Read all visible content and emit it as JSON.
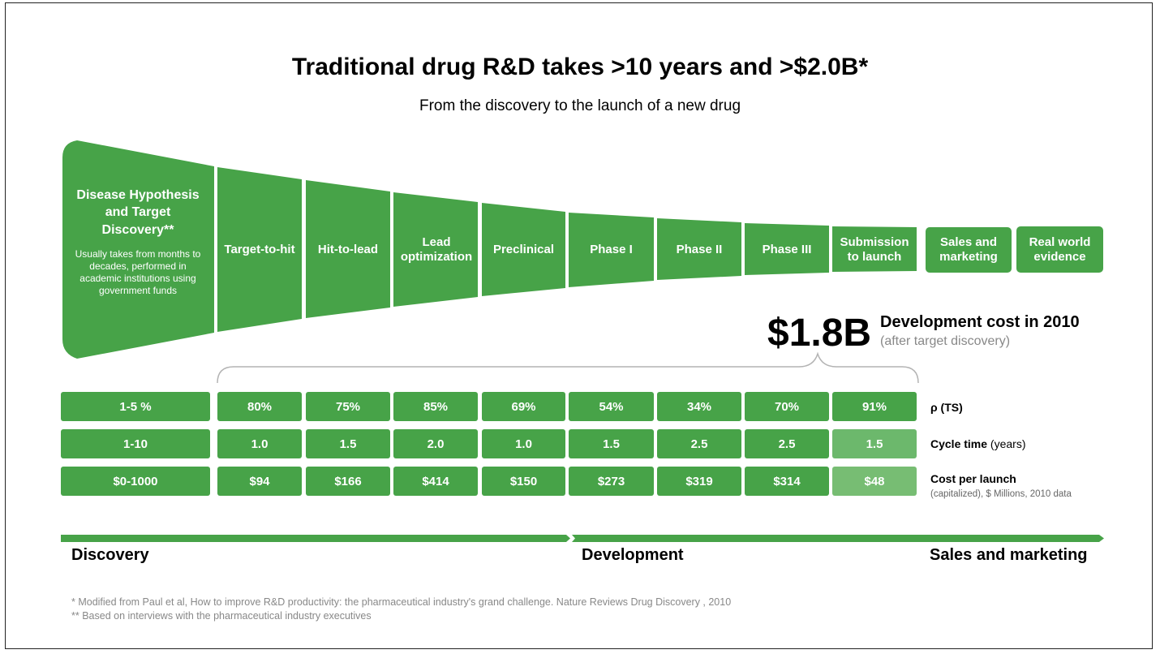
{
  "title": "Traditional drug R&D takes >10 years and >$2.0B*",
  "subtitle": "From the discovery to the launch of a new drug",
  "colors": {
    "green": "#47a348",
    "light_green": "#6cb86c",
    "gray_text": "#888888"
  },
  "funnel": {
    "discovery_title": "Disease Hypothesis and Target Discovery**",
    "discovery_note": "Usually takes from months to decades, performed in academic institutions using government funds",
    "stages": [
      "Target-to-hit",
      "Hit-to-lead",
      "Lead optimization",
      "Preclinical",
      "Phase I",
      "Phase II",
      "Phase III",
      "Submission to launch"
    ],
    "extra_stages": [
      "Sales and marketing",
      "Real world evidence"
    ]
  },
  "dev_cost": {
    "amount": "$1.8B",
    "label": "Development cost in 2010",
    "note": "(after target discovery)"
  },
  "table": {
    "rows": [
      {
        "label": "ρ (TS)",
        "label_rest": "",
        "sublabel": "",
        "values": [
          "1-5 %",
          "80%",
          "75%",
          "85%",
          "69%",
          "54%",
          "34%",
          "70%",
          "91%"
        ]
      },
      {
        "label": "Cycle time",
        "label_rest": " (years)",
        "sublabel": "",
        "values": [
          "1-10",
          "1.0",
          "1.5",
          "2.0",
          "1.0",
          "1.5",
          "2.5",
          "2.5",
          "1.5"
        ]
      },
      {
        "label": "Cost per launch",
        "label_rest": "",
        "sublabel": "(capitalized), $ Millions, 2010 data",
        "values": [
          "$0-1000",
          "$94",
          "$166",
          "$414",
          "$150",
          "$273",
          "$319",
          "$314",
          "$48"
        ]
      }
    ]
  },
  "stages_bottom": [
    "Discovery",
    "Development",
    "Sales and marketing"
  ],
  "footnotes": [
    "* Modified from Paul et al, How to improve R&D productivity: the pharmaceutical industry's grand challenge. Nature Reviews Drug Discovery , 2010",
    "** Based on interviews with the pharmaceutical industry executives"
  ]
}
